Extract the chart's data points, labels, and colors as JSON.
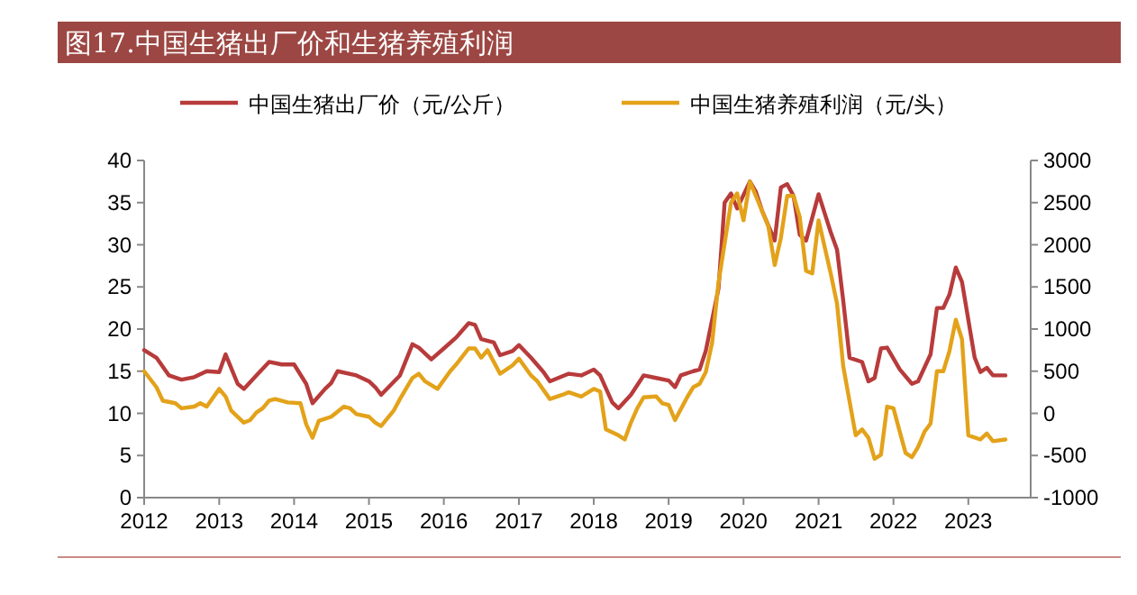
{
  "chart_data": {
    "type": "line",
    "title": "图17.中国生猪出厂价和生猪养殖利润",
    "xlim": [
      "2012-01",
      "2023-11"
    ],
    "xticks": [
      "2012",
      "2013",
      "2014",
      "2015",
      "2016",
      "2017",
      "2018",
      "2019",
      "2020",
      "2021",
      "2022",
      "2023"
    ],
    "ylim": [
      0,
      40
    ],
    "yticks": [
      0,
      5,
      10,
      15,
      20,
      25,
      30,
      35,
      40
    ],
    "y2lim": [
      -1000,
      3000
    ],
    "y2ticks": [
      -1000,
      -500,
      0,
      500,
      1000,
      1500,
      2000,
      2500,
      3000
    ],
    "grid": false,
    "legend": "top",
    "marker": "none",
    "line_style": "solid",
    "series": [
      {
        "name": "中国生猪出厂价（元/公斤）",
        "color": "#b83b3b",
        "x": [
          "2012-01",
          "2012-03",
          "2012-05",
          "2012-07",
          "2012-09",
          "2012-11",
          "2013-01",
          "2013-02",
          "2013-04",
          "2013-05",
          "2013-07",
          "2013-09",
          "2013-11",
          "2014-01",
          "2014-03",
          "2014-04",
          "2014-06",
          "2014-07",
          "2014-08",
          "2014-11",
          "2015-01",
          "2015-02",
          "2015-03",
          "2015-06",
          "2015-08",
          "2015-09",
          "2015-11",
          "2016-01",
          "2016-03",
          "2016-05",
          "2016-06",
          "2016-07",
          "2016-09",
          "2016-10",
          "2016-12",
          "2017-01",
          "2017-03",
          "2017-05",
          "2017-06",
          "2017-09",
          "2017-11",
          "2018-01",
          "2018-02",
          "2018-04",
          "2018-05",
          "2018-07",
          "2018-09",
          "2018-11",
          "2019-01",
          "2019-02",
          "2019-03",
          "2019-05",
          "2019-06",
          "2019-07",
          "2019-09",
          "2019-10",
          "2019-11",
          "2019-12",
          "2020-02",
          "2020-03",
          "2020-04",
          "2020-06",
          "2020-07",
          "2020-08",
          "2020-09",
          "2020-10",
          "2020-11",
          "2021-01",
          "2021-03",
          "2021-04",
          "2021-05",
          "2021-06",
          "2021-08",
          "2021-09",
          "2021-10",
          "2021-11",
          "2021-12",
          "2022-02",
          "2022-04",
          "2022-05",
          "2022-07",
          "2022-08",
          "2022-09",
          "2022-10",
          "2022-11",
          "2022-12",
          "2023-02",
          "2023-03",
          "2023-04",
          "2023-05",
          "2023-07"
        ],
        "values": [
          17.5,
          16.6,
          14.5,
          14.0,
          14.3,
          15.0,
          14.9,
          17.0,
          13.5,
          12.9,
          14.5,
          16.1,
          15.8,
          15.8,
          13.5,
          11.2,
          12.9,
          13.6,
          15.0,
          14.5,
          13.8,
          13.1,
          12.2,
          14.5,
          18.2,
          17.8,
          16.4,
          17.7,
          19.0,
          20.7,
          20.5,
          18.8,
          18.4,
          16.9,
          17.4,
          18.1,
          16.6,
          14.9,
          13.8,
          14.7,
          14.5,
          15.2,
          14.5,
          11.3,
          10.6,
          12.2,
          14.5,
          14.2,
          13.9,
          13.1,
          14.5,
          15.0,
          15.2,
          17.4,
          24.8,
          35.0,
          36.1,
          34.3,
          37.5,
          36.3,
          34.0,
          30.5,
          36.8,
          37.2,
          35.8,
          31.2,
          30.5,
          36.0,
          31.5,
          29.4,
          23.4,
          16.6,
          16.1,
          13.8,
          14.2,
          17.7,
          17.8,
          15.2,
          13.5,
          13.8,
          17.0,
          22.5,
          22.5,
          24.1,
          27.3,
          25.6,
          16.6,
          14.9,
          15.4,
          14.5,
          14.5
        ]
      },
      {
        "name": "中国生猪养殖利润（元/头）",
        "color": "#e3a21a",
        "axis": "y2",
        "x": [
          "2012-01",
          "2012-03",
          "2012-04",
          "2012-06",
          "2012-07",
          "2012-09",
          "2012-10",
          "2012-11",
          "2013-01",
          "2013-02",
          "2013-03",
          "2013-05",
          "2013-06",
          "2013-07",
          "2013-08",
          "2013-09",
          "2013-10",
          "2013-12",
          "2014-02",
          "2014-03",
          "2014-04",
          "2014-05",
          "2014-07",
          "2014-09",
          "2014-10",
          "2014-11",
          "2015-01",
          "2015-02",
          "2015-03",
          "2015-05",
          "2015-06",
          "2015-08",
          "2015-09",
          "2015-10",
          "2015-12",
          "2016-02",
          "2016-03",
          "2016-05",
          "2016-06",
          "2016-07",
          "2016-08",
          "2016-10",
          "2016-12",
          "2017-01",
          "2017-03",
          "2017-04",
          "2017-06",
          "2017-08",
          "2017-09",
          "2017-11",
          "2018-01",
          "2018-02",
          "2018-03",
          "2018-05",
          "2018-06",
          "2018-07",
          "2018-08",
          "2018-09",
          "2018-11",
          "2018-12",
          "2019-01",
          "2019-02",
          "2019-04",
          "2019-05",
          "2019-06",
          "2019-07",
          "2019-08",
          "2019-09",
          "2019-11",
          "2019-12",
          "2020-01",
          "2020-02",
          "2020-03",
          "2020-05",
          "2020-06",
          "2020-07",
          "2020-08",
          "2020-09",
          "2020-10",
          "2020-11",
          "2020-12",
          "2021-01",
          "2021-03",
          "2021-04",
          "2021-05",
          "2021-07",
          "2021-08",
          "2021-09",
          "2021-10",
          "2021-11",
          "2021-12",
          "2022-01",
          "2022-02",
          "2022-03",
          "2022-04",
          "2022-05",
          "2022-06",
          "2022-07",
          "2022-08",
          "2022-09",
          "2022-10",
          "2022-11",
          "2022-12",
          "2023-01",
          "2023-03",
          "2023-04",
          "2023-05",
          "2023-07"
        ],
        "values": [
          500,
          310,
          150,
          120,
          60,
          80,
          120,
          80,
          290,
          200,
          30,
          -110,
          -80,
          10,
          60,
          150,
          170,
          130,
          120,
          -130,
          -290,
          -90,
          -40,
          80,
          60,
          -10,
          -40,
          -110,
          -150,
          30,
          170,
          420,
          470,
          380,
          290,
          500,
          580,
          770,
          770,
          660,
          750,
          470,
          570,
          650,
          450,
          380,
          170,
          220,
          250,
          200,
          290,
          260,
          -190,
          -260,
          -310,
          -110,
          60,
          190,
          200,
          120,
          100,
          -80,
          190,
          310,
          350,
          490,
          840,
          1550,
          2500,
          2610,
          2290,
          2750,
          2580,
          2220,
          1760,
          2080,
          2580,
          2580,
          2330,
          1690,
          1660,
          2290,
          1660,
          1300,
          560,
          -260,
          -190,
          -290,
          -540,
          -490,
          80,
          60,
          -220,
          -470,
          -520,
          -400,
          -220,
          -120,
          500,
          500,
          740,
          1110,
          880,
          -260,
          -310,
          -240,
          -330,
          -310
        ]
      }
    ]
  }
}
